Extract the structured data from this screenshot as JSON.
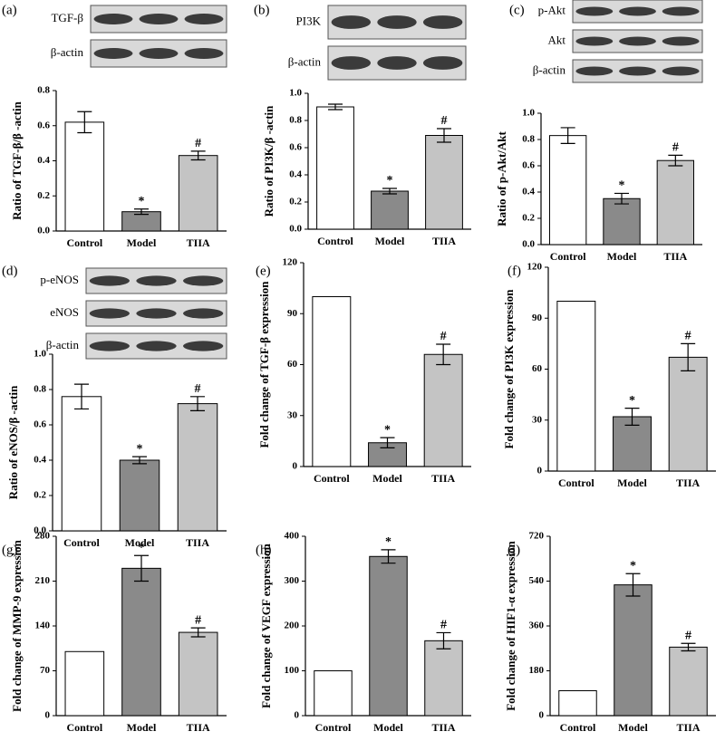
{
  "chart_data": [
    {
      "type": "bar",
      "panel": "(a)",
      "blot_labels": [
        "TGF-β",
        "β-actin"
      ],
      "ylabel": "Ratio of TGF-β/β -actin",
      "categories": [
        "Control",
        "Model",
        "TIIA"
      ],
      "values": [
        0.62,
        0.11,
        0.43
      ],
      "errors": [
        0.06,
        0.015,
        0.025
      ],
      "annotations": [
        null,
        "*",
        "#"
      ],
      "colors": [
        "#ffffff",
        "#8a8a8a",
        "#c4c4c4"
      ],
      "ylim": [
        0,
        0.8
      ],
      "yticks": [
        {
          "value": 0,
          "label": "0.0"
        },
        0.2,
        0.4,
        0.6,
        0.8
      ]
    },
    {
      "type": "bar",
      "panel": "(b)",
      "blot_labels": [
        "PI3K",
        "β-actin"
      ],
      "ylabel": "Ratio of PI3K/β -actin",
      "categories": [
        "Control",
        "Model",
        "TIIA"
      ],
      "values": [
        0.9,
        0.28,
        0.69
      ],
      "errors": [
        0.02,
        0.02,
        0.05
      ],
      "annotations": [
        null,
        "*",
        "#"
      ],
      "colors": [
        "#ffffff",
        "#8a8a8a",
        "#c4c4c4"
      ],
      "ylim": [
        0,
        1.0
      ],
      "yticks": [
        {
          "value": 0,
          "label": "0.0"
        },
        0.2,
        0.4,
        0.6,
        0.8,
        {
          "value": 1,
          "label": "1.0"
        }
      ]
    },
    {
      "type": "bar",
      "panel": "(c)",
      "blot_labels": [
        "p-Akt",
        "Akt",
        "β-actin"
      ],
      "ylabel": "Ratio of p-Akt/Akt",
      "categories": [
        "Control",
        "Model",
        "TIIA"
      ],
      "values": [
        0.83,
        0.35,
        0.64
      ],
      "errors": [
        0.06,
        0.04,
        0.04
      ],
      "annotations": [
        null,
        "*",
        "#"
      ],
      "colors": [
        "#ffffff",
        "#8a8a8a",
        "#c4c4c4"
      ],
      "ylim": [
        0,
        1.0
      ],
      "yticks": [
        {
          "value": 0,
          "label": "0.0"
        },
        0.2,
        0.4,
        0.6,
        0.8,
        {
          "value": 1,
          "label": "1.0"
        }
      ]
    },
    {
      "type": "bar",
      "panel": "(d)",
      "blot_labels": [
        "p-eNOS",
        "eNOS",
        "β-actin"
      ],
      "ylabel": "Ratio of eNOS/β -actin",
      "categories": [
        "Control",
        "Model",
        "TIIA"
      ],
      "values": [
        0.76,
        0.4,
        0.72
      ],
      "errors": [
        0.07,
        0.02,
        0.04
      ],
      "annotations": [
        null,
        "*",
        "#"
      ],
      "colors": [
        "#ffffff",
        "#8a8a8a",
        "#c4c4c4"
      ],
      "ylim": [
        0,
        1.0
      ],
      "yticks": [
        {
          "value": 0,
          "label": "0.0"
        },
        0.2,
        0.4,
        0.6,
        0.8,
        {
          "value": 1,
          "label": "1.0"
        }
      ]
    },
    {
      "type": "bar",
      "panel": "(e)",
      "ylabel": "Fold change of TGF-β  expression",
      "categories": [
        "Control",
        "Model",
        "TIIA"
      ],
      "values": [
        100,
        14,
        66
      ],
      "errors": [
        null,
        3,
        6
      ],
      "annotations": [
        null,
        "*",
        "#"
      ],
      "colors": [
        "#ffffff",
        "#8a8a8a",
        "#c4c4c4"
      ],
      "ylim": [
        0,
        120
      ],
      "yticks": [
        0,
        30,
        60,
        90,
        120
      ]
    },
    {
      "type": "bar",
      "panel": "(f)",
      "ylabel": "Fold change of PI3K expression",
      "categories": [
        "Control",
        "Model",
        "TIIA"
      ],
      "values": [
        100,
        32,
        67
      ],
      "errors": [
        null,
        5,
        8
      ],
      "annotations": [
        null,
        "*",
        "#"
      ],
      "colors": [
        "#ffffff",
        "#8a8a8a",
        "#c4c4c4"
      ],
      "ylim": [
        0,
        120
      ],
      "yticks": [
        0,
        30,
        60,
        90,
        120
      ]
    },
    {
      "type": "bar",
      "panel": "(g)",
      "ylabel": "Fold change of MMP-9 expression",
      "categories": [
        "Control",
        "Model",
        "TIIA"
      ],
      "values": [
        100,
        230,
        130
      ],
      "errors": [
        null,
        20,
        7
      ],
      "annotations": [
        null,
        "*",
        "#"
      ],
      "colors": [
        "#ffffff",
        "#8a8a8a",
        "#c4c4c4"
      ],
      "ylim": [
        0,
        280
      ],
      "yticks": [
        0,
        70,
        140,
        210,
        280
      ]
    },
    {
      "type": "bar",
      "panel": "(h)",
      "ylabel": "Fold change of VEGF expression",
      "categories": [
        "Control",
        "Model",
        "TIIA"
      ],
      "values": [
        100,
        355,
        167
      ],
      "errors": [
        null,
        15,
        18
      ],
      "annotations": [
        null,
        "*",
        "#"
      ],
      "colors": [
        "#ffffff",
        "#8a8a8a",
        "#c4c4c4"
      ],
      "ylim": [
        0,
        400
      ],
      "yticks": [
        0,
        100,
        200,
        300,
        400
      ]
    },
    {
      "type": "bar",
      "panel": "(i)",
      "ylabel": "Fold change of HIF1-α  expression",
      "categories": [
        "Control",
        "Model",
        "TIIA"
      ],
      "values": [
        100,
        525,
        275
      ],
      "errors": [
        null,
        45,
        15
      ],
      "annotations": [
        null,
        "*",
        "#"
      ],
      "colors": [
        "#ffffff",
        "#8a8a8a",
        "#c4c4c4"
      ],
      "ylim": [
        0,
        720
      ],
      "yticks": [
        0,
        180,
        360,
        540,
        720
      ]
    }
  ]
}
